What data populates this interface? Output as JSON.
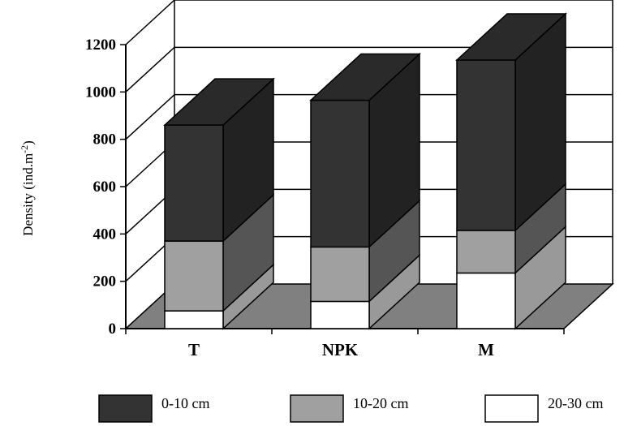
{
  "chart_data": {
    "type": "bar",
    "stacked": true,
    "three_d": true,
    "title": "",
    "xlabel": "",
    "ylabel": "Density (ind.m",
    "ylabel_superscript": "-2",
    "ylabel_suffix": ")",
    "ylim": [
      0,
      1200
    ],
    "yticks": [
      0,
      200,
      400,
      600,
      800,
      1000,
      1200
    ],
    "grid": true,
    "legend_position": "bottom",
    "categories": [
      "T",
      "NPK",
      "M"
    ],
    "series": [
      {
        "name": "20-30 cm",
        "color": "#ffffff",
        "values": [
          75,
          115,
          235
        ]
      },
      {
        "name": "10-20 cm",
        "color": "#a0a0a0",
        "values": [
          295,
          230,
          180
        ]
      },
      {
        "name": "0-10 cm",
        "color": "#333333",
        "values": [
          490,
          620,
          720
        ]
      }
    ],
    "colors": {
      "floor": "#808080",
      "side_dark": "#222222",
      "side_mid": "#555555",
      "side_light": "#a0a0a0",
      "legend_0_10": "#333333",
      "legend_10_20": "#a0a0a0",
      "legend_20_30": "#ffffff"
    }
  }
}
